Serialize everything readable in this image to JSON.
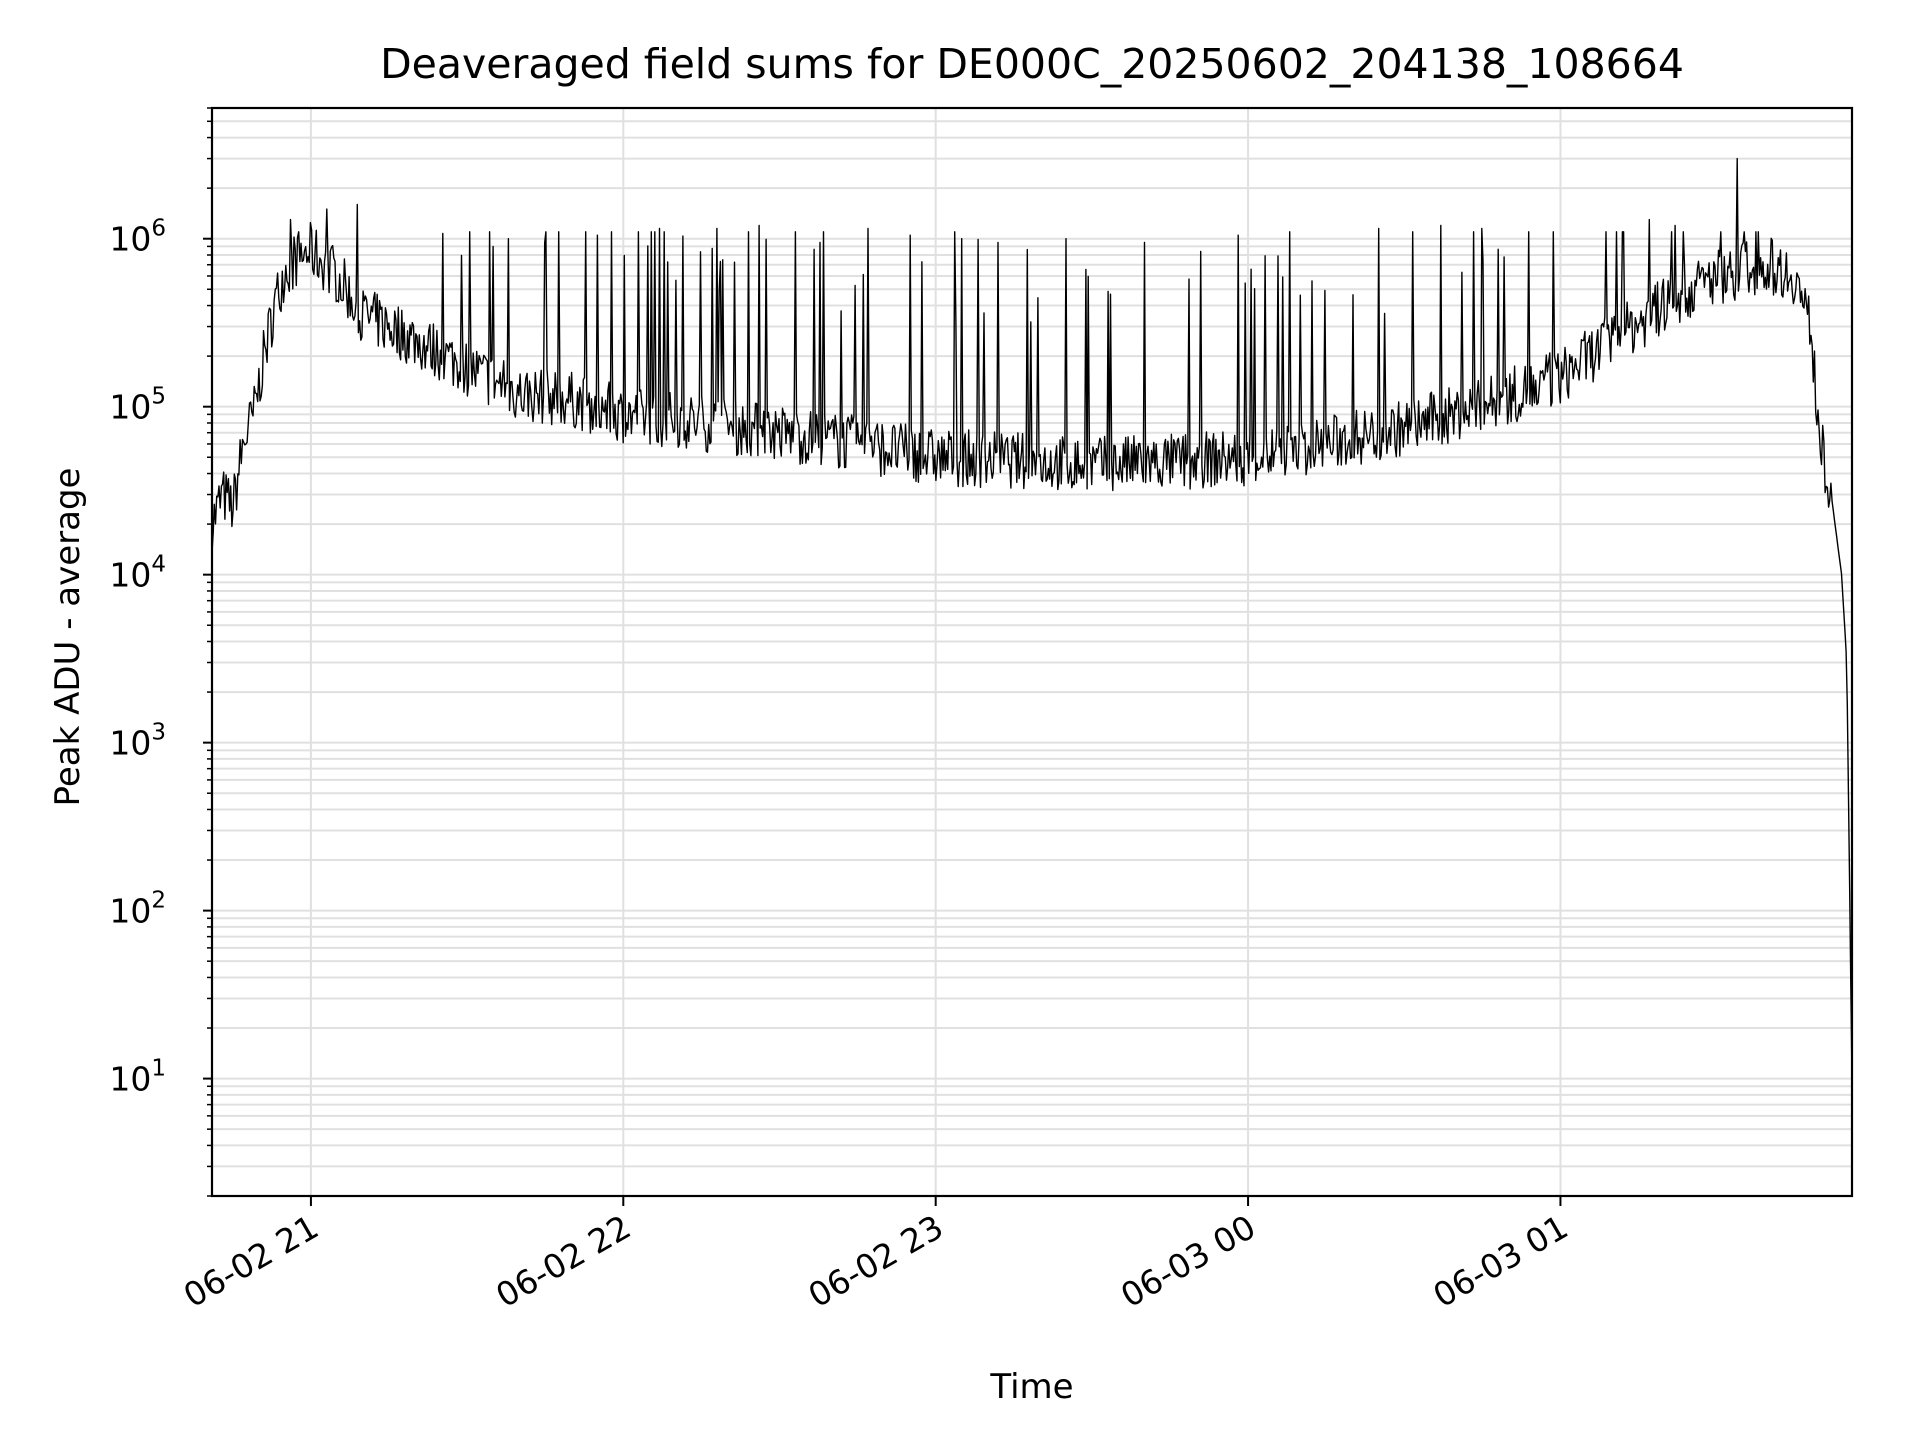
{
  "chart_data": {
    "type": "line",
    "title": "Deaveraged field sums for DE000C_20250602_204138_108664",
    "xlabel": "Time",
    "ylabel": "Peak ADU - average",
    "yscale": "log",
    "grid": true,
    "x_tick_labels": [
      "06-02 21",
      "06-02 22",
      "06-02 23",
      "06-03 00",
      "06-03 01"
    ],
    "y_tick_labels": [
      {
        "base": "10",
        "exp": "1"
      },
      {
        "base": "10",
        "exp": "2"
      },
      {
        "base": "10",
        "exp": "3"
      },
      {
        "base": "10",
        "exp": "4"
      },
      {
        "base": "10",
        "exp": "5"
      },
      {
        "base": "10",
        "exp": "6"
      }
    ],
    "xlim": [
      "2025-06-02 20:41",
      "2025-06-03 01:56"
    ],
    "ylim": [
      2,
      6000000
    ],
    "line_color": "#000000",
    "grid_color": "#e0e0e0",
    "series": [
      {
        "x": [
          "2025-06-02 20:41",
          "2025-06-02 20:43",
          "2025-06-02 20:45",
          "2025-06-02 20:47",
          "2025-06-02 20:49",
          "2025-06-02 20:51",
          "2025-06-02 20:53",
          "2025-06-02 20:55",
          "2025-06-02 20:57",
          "2025-06-02 21:00",
          "2025-06-02 21:05",
          "2025-06-02 21:10",
          "2025-06-02 21:15",
          "2025-06-02 21:20",
          "2025-06-02 21:30",
          "2025-06-02 21:40",
          "2025-06-02 21:50",
          "2025-06-02 22:00",
          "2025-06-02 22:15",
          "2025-06-02 22:30",
          "2025-06-02 22:45",
          "2025-06-02 23:00",
          "2025-06-02 23:15",
          "2025-06-02 23:30",
          "2025-06-02 23:45",
          "2025-06-03 00:00",
          "2025-06-03 00:15",
          "2025-06-03 00:30",
          "2025-06-03 00:45",
          "2025-06-03 01:00",
          "2025-06-03 01:10",
          "2025-06-03 01:20",
          "2025-06-03 01:30",
          "2025-06-03 01:35",
          "2025-06-03 01:40",
          "2025-06-03 01:45",
          "2025-06-03 01:48",
          "2025-06-03 01:50",
          "2025-06-03 01:52",
          "2025-06-03 01:54",
          "2025-06-03 01:55",
          "2025-06-03 01:56"
        ],
        "y": [
          20000,
          30000,
          25000,
          60000,
          90000,
          200000,
          400000,
          650000,
          750000,
          850000,
          600000,
          350000,
          300000,
          250000,
          170000,
          120000,
          110000,
          90000,
          80000,
          70000,
          60000,
          50000,
          48000,
          45000,
          47000,
          50000,
          60000,
          75000,
          100000,
          150000,
          250000,
          400000,
          600000,
          650000,
          700000,
          600000,
          300000,
          60000,
          30000,
          10000,
          3000,
          10
        ]
      }
    ],
    "spikes": [
      {
        "x": "2025-06-02 20:56",
        "y": 1300000
      },
      {
        "x": "2025-06-02 21:03",
        "y": 1500000
      },
      {
        "x": "2025-06-02 21:09",
        "y": 1600000
      },
      {
        "x": "2025-06-02 21:35",
        "y": 900000
      },
      {
        "x": "2025-06-02 21:38",
        "y": 1000000
      },
      {
        "x": "2025-06-02 21:45",
        "y": 950000
      },
      {
        "x": "2025-06-02 21:55",
        "y": 1050000
      },
      {
        "x": "2025-06-02 22:03",
        "y": 1100000
      },
      {
        "x": "2025-06-02 22:07",
        "y": 1150000
      },
      {
        "x": "2025-06-02 22:18",
        "y": 1150000
      },
      {
        "x": "2025-06-02 22:26",
        "y": 1200000
      },
      {
        "x": "2025-06-02 22:33",
        "y": 1100000
      },
      {
        "x": "2025-06-02 22:47",
        "y": 1150000
      },
      {
        "x": "2025-06-02 22:55",
        "y": 1050000
      },
      {
        "x": "2025-06-02 23:05",
        "y": 1000000
      },
      {
        "x": "2025-06-02 23:12",
        "y": 950000
      },
      {
        "x": "2025-06-02 23:25",
        "y": 1000000
      },
      {
        "x": "2025-06-02 23:40",
        "y": 950000
      },
      {
        "x": "2025-06-02 23:58",
        "y": 1050000
      },
      {
        "x": "2025-06-03 00:08",
        "y": 1100000
      },
      {
        "x": "2025-06-03 00:25",
        "y": 1150000
      },
      {
        "x": "2025-06-03 00:37",
        "y": 1200000
      },
      {
        "x": "2025-06-03 00:45",
        "y": 1150000
      },
      {
        "x": "2025-06-03 00:54",
        "y": 1100000
      },
      {
        "x": "2025-06-03 01:12",
        "y": 1100000
      },
      {
        "x": "2025-06-03 01:17",
        "y": 1300000
      },
      {
        "x": "2025-06-03 01:22",
        "y": 1200000
      },
      {
        "x": "2025-06-03 01:34",
        "y": 3000000
      }
    ]
  }
}
